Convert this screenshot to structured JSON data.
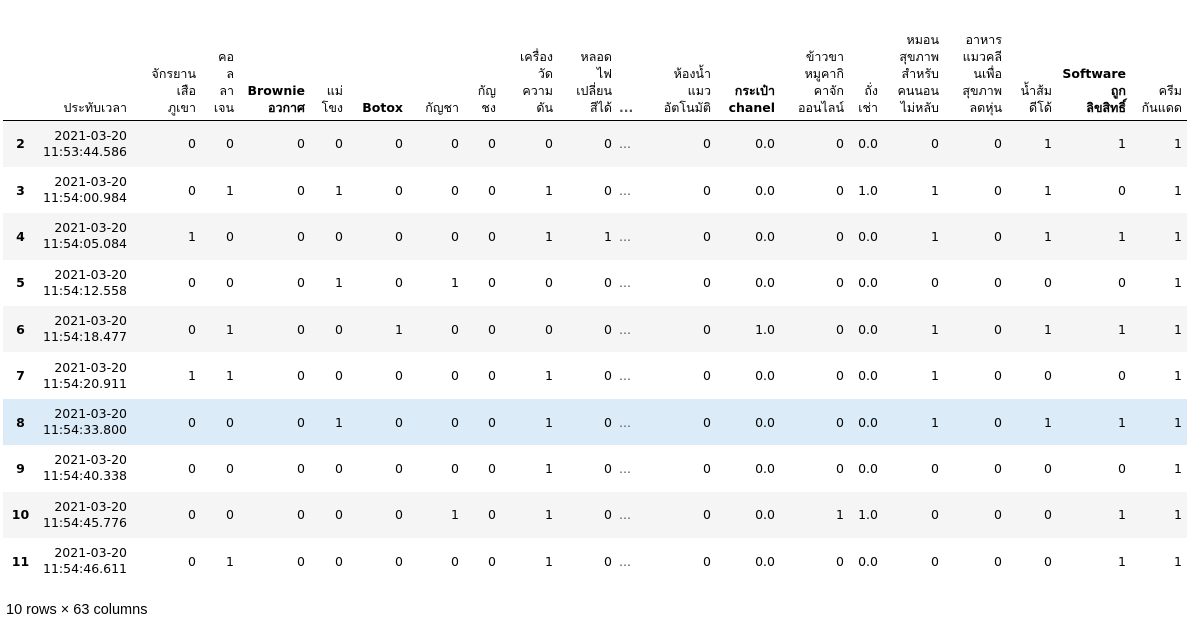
{
  "table": {
    "columns": [
      "ประทับเวลา",
      "จักรยาน\nเสือ\nภูเขา",
      "คอ\nล\nลา\nเจน",
      "Brownie\nอวกาศ",
      "แม่\nโขง",
      "Botox",
      "กัญชา",
      "กัญ\nชง",
      "เครื่อง\nวัด\nความ\nดัน",
      "หลอด\nไฟ\nเปลี่ยน\nสีได้",
      "...",
      "ห้องน้ำ\nแมว\nอัตโนมัติ",
      "กระเป๋า\nchanel",
      "ข้าวขา\nหมูคากิ\nคาจัก\nออนไลน์",
      "ถั่ง\nเช่า",
      "หมอน\nสุขภาพ\nสำหรับ\nคนนอน\nไม่หลับ",
      "อาหาร\nแมวคลี\nนเพื่อ\nสุขภาพ\nลดหุ่น",
      "น้ำส้ม\nดีโด้",
      "Software\nถูก\nลิขสิทธิ์",
      "ครีม\nกันแดด"
    ],
    "rows": [
      {
        "index": "2",
        "values": [
          "2021-03-20\n11:53:44.586",
          "0",
          "0",
          "0",
          "0",
          "0",
          "0",
          "0",
          "0",
          "0",
          "...",
          "0",
          "0.0",
          "0",
          "0.0",
          "0",
          "0",
          "1",
          "1",
          "1"
        ]
      },
      {
        "index": "3",
        "values": [
          "2021-03-20\n11:54:00.984",
          "0",
          "1",
          "0",
          "1",
          "0",
          "0",
          "0",
          "1",
          "0",
          "...",
          "0",
          "0.0",
          "0",
          "1.0",
          "1",
          "0",
          "1",
          "0",
          "1"
        ]
      },
      {
        "index": "4",
        "values": [
          "2021-03-20\n11:54:05.084",
          "1",
          "0",
          "0",
          "0",
          "0",
          "0",
          "0",
          "1",
          "1",
          "...",
          "0",
          "0.0",
          "0",
          "0.0",
          "1",
          "0",
          "1",
          "1",
          "1"
        ]
      },
      {
        "index": "5",
        "values": [
          "2021-03-20\n11:54:12.558",
          "0",
          "0",
          "0",
          "1",
          "0",
          "1",
          "0",
          "0",
          "0",
          "...",
          "0",
          "0.0",
          "0",
          "0.0",
          "0",
          "0",
          "0",
          "0",
          "1"
        ]
      },
      {
        "index": "6",
        "values": [
          "2021-03-20\n11:54:18.477",
          "0",
          "1",
          "0",
          "0",
          "1",
          "0",
          "0",
          "0",
          "0",
          "...",
          "0",
          "1.0",
          "0",
          "0.0",
          "1",
          "0",
          "1",
          "1",
          "1"
        ]
      },
      {
        "index": "7",
        "values": [
          "2021-03-20\n11:54:20.911",
          "1",
          "1",
          "0",
          "0",
          "0",
          "0",
          "0",
          "1",
          "0",
          "...",
          "0",
          "0.0",
          "0",
          "0.0",
          "1",
          "0",
          "0",
          "0",
          "1"
        ]
      },
      {
        "index": "8",
        "values": [
          "2021-03-20\n11:54:33.800",
          "0",
          "0",
          "0",
          "1",
          "0",
          "0",
          "0",
          "1",
          "0",
          "...",
          "0",
          "0.0",
          "0",
          "0.0",
          "1",
          "0",
          "1",
          "1",
          "1"
        ]
      },
      {
        "index": "9",
        "values": [
          "2021-03-20\n11:54:40.338",
          "0",
          "0",
          "0",
          "0",
          "0",
          "0",
          "0",
          "1",
          "0",
          "...",
          "0",
          "0.0",
          "0",
          "0.0",
          "0",
          "0",
          "0",
          "0",
          "1"
        ]
      },
      {
        "index": "10",
        "values": [
          "2021-03-20\n11:54:45.776",
          "0",
          "0",
          "0",
          "0",
          "0",
          "1",
          "0",
          "1",
          "0",
          "...",
          "0",
          "0.0",
          "1",
          "1.0",
          "0",
          "0",
          "0",
          "1",
          "1"
        ]
      },
      {
        "index": "11",
        "values": [
          "2021-03-20\n11:54:46.611",
          "0",
          "1",
          "0",
          "0",
          "0",
          "0",
          "0",
          "1",
          "0",
          "...",
          "0",
          "0.0",
          "0",
          "0.0",
          "0",
          "0",
          "0",
          "1",
          "1"
        ]
      }
    ],
    "highlighted_row": "8"
  },
  "footer": "10 rows × 63 columns",
  "colors": {
    "odd_row": "#f5f5f5",
    "even_row": "#ffffff",
    "hover_row": "#dbecf8"
  }
}
